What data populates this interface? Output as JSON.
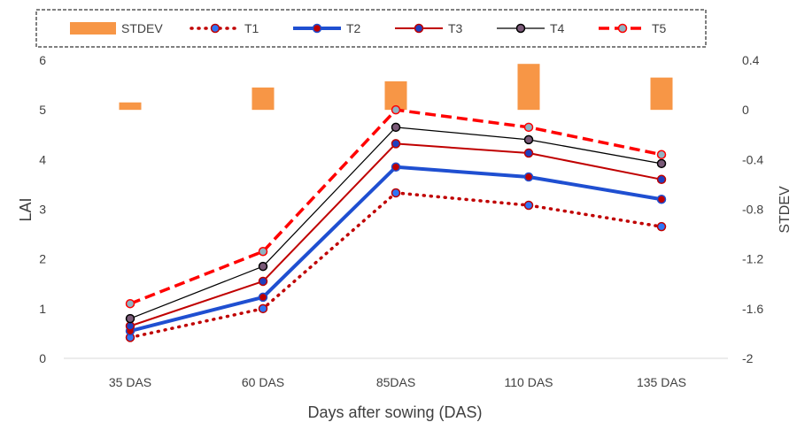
{
  "chart_data": {
    "type": "line",
    "categories": [
      "35 DAS",
      "60 DAS",
      "85DAS",
      "110  DAS",
      "135 DAS"
    ],
    "xlabel": "Days after sowing (DAS)",
    "ylabel": "LAI",
    "y2label": "STDEV",
    "ylim": [
      0,
      6
    ],
    "yticks": [
      "0",
      "1",
      "2",
      "3",
      "4",
      "5",
      "6"
    ],
    "y2lim": [
      -2,
      0.4
    ],
    "y2ticks": [
      "-2",
      "-1.6",
      "-1.2",
      "-0.8",
      "-0.4",
      "0",
      "0.4"
    ],
    "grid": false,
    "legend": "top",
    "stdev": {
      "name": "STDEV",
      "color": "#f79646",
      "values": [
        0.06,
        0.18,
        0.23,
        0.37,
        0.26
      ]
    },
    "series": [
      {
        "name": "T1",
        "values": [
          0.42,
          1.0,
          3.33,
          3.08,
          2.65
        ],
        "color": "#c00000",
        "marker_fill": "#2e75f6",
        "style": "dotted"
      },
      {
        "name": "T2",
        "values": [
          0.55,
          1.23,
          3.85,
          3.65,
          3.2
        ],
        "color": "#1f4fd1",
        "marker_fill": "#c00000",
        "style": "thick"
      },
      {
        "name": "T3",
        "values": [
          0.65,
          1.55,
          4.32,
          4.13,
          3.6
        ],
        "color": "#c00000",
        "marker_fill": "#1f3fbf",
        "style": "solid"
      },
      {
        "name": "T4",
        "values": [
          0.8,
          1.85,
          4.65,
          4.4,
          3.92
        ],
        "color": "#000000",
        "marker_fill": "#7a5a78",
        "style": "thin"
      },
      {
        "name": "T5",
        "values": [
          1.1,
          2.15,
          5.0,
          4.65,
          4.1
        ],
        "color": "#ff0000",
        "marker_fill": "#8fb3c2",
        "style": "dashed"
      }
    ]
  }
}
